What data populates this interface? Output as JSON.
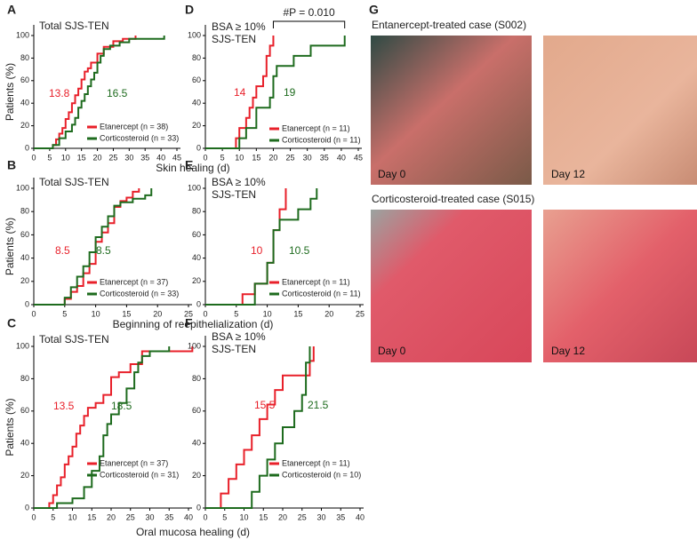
{
  "chart_data": [
    {
      "type": "step",
      "panel": "A",
      "title": "Total SJS-TEN",
      "xlabel": "Skin healing (d)",
      "ylabel": "Patients (%)",
      "xlim": [
        0,
        45
      ],
      "xticks": [
        0,
        5,
        10,
        15,
        20,
        25,
        30,
        35,
        40,
        45
      ],
      "ylim": [
        0,
        100
      ],
      "yticks": [
        0,
        20,
        40,
        60,
        80,
        100
      ],
      "legend": "lower right",
      "series": [
        {
          "name": "Etanercept (n = 38)",
          "color": "#e8202a",
          "median_label": "13.8",
          "x": [
            0,
            6,
            7,
            8,
            9,
            10,
            11,
            12,
            13,
            14,
            15,
            16,
            17,
            18,
            20,
            22,
            25,
            28,
            32
          ],
          "values": [
            0,
            3,
            8,
            13,
            18,
            26,
            32,
            40,
            47,
            53,
            61,
            68,
            71,
            76,
            84,
            90,
            95,
            97,
            100
          ]
        },
        {
          "name": "Corticosteroid (n = 33)",
          "color": "#1e6b1e",
          "median_label": "16.5",
          "x": [
            0,
            6,
            8,
            10,
            12,
            13,
            14,
            15,
            16,
            17,
            18,
            19,
            20,
            21,
            22,
            24,
            27,
            30,
            41
          ],
          "values": [
            0,
            3,
            9,
            15,
            21,
            27,
            36,
            42,
            48,
            55,
            61,
            67,
            76,
            82,
            88,
            91,
            94,
            97,
            100
          ]
        }
      ]
    },
    {
      "type": "step",
      "panel": "D",
      "title": "BSA ≥ 10%",
      "subtitle": "SJS-TEN",
      "annotation": "#P = 0.010",
      "xlim": [
        0,
        45
      ],
      "xticks": [
        0,
        5,
        10,
        15,
        20,
        25,
        30,
        35,
        40,
        45
      ],
      "ylim": [
        0,
        100
      ],
      "yticks": [
        0,
        20,
        40,
        60,
        80,
        100
      ],
      "legend": "lower right",
      "series": [
        {
          "name": "Etanercept (n = 11)",
          "color": "#e8202a",
          "median_label": "14",
          "x": [
            0,
            9,
            10,
            12,
            13,
            14,
            15,
            17,
            18,
            19,
            20
          ],
          "values": [
            0,
            9,
            18,
            27,
            36,
            45,
            55,
            64,
            82,
            91,
            100
          ]
        },
        {
          "name": "Corticosteroid (n = 11)",
          "color": "#1e6b1e",
          "median_label": "19",
          "x": [
            0,
            10,
            12,
            15,
            19,
            20,
            21,
            26,
            31,
            41
          ],
          "values": [
            0,
            9,
            18,
            36,
            45,
            64,
            73,
            82,
            91,
            100
          ]
        }
      ]
    },
    {
      "type": "step",
      "panel": "B",
      "title": "Total SJS-TEN",
      "xlabel": "Beginning of reepithelialization (d)",
      "ylabel": "Patients (%)",
      "xlim": [
        0,
        25
      ],
      "xticks": [
        0,
        5,
        10,
        15,
        20,
        25
      ],
      "ylim": [
        0,
        100
      ],
      "yticks": [
        0,
        20,
        40,
        60,
        80,
        100
      ],
      "legend": "lower right",
      "series": [
        {
          "name": "Etanercept (n = 37)",
          "color": "#e8202a",
          "median_label": "8.5",
          "x": [
            0,
            5,
            6,
            7,
            8,
            9,
            10,
            11,
            12,
            13,
            14,
            15,
            16,
            17
          ],
          "values": [
            0,
            5,
            11,
            16,
            27,
            35,
            54,
            62,
            70,
            84,
            89,
            92,
            97,
            100
          ]
        },
        {
          "name": "Corticosteroid (n = 33)",
          "color": "#1e6b1e",
          "median_label": "8.5",
          "x": [
            0,
            5,
            6,
            7,
            8,
            9,
            10,
            11,
            12,
            13,
            14,
            16,
            18,
            19
          ],
          "values": [
            0,
            6,
            15,
            24,
            33,
            45,
            58,
            67,
            76,
            85,
            88,
            91,
            94,
            100
          ]
        }
      ]
    },
    {
      "type": "step",
      "panel": "E",
      "title": "BSA ≥ 10%",
      "subtitle": "SJS-TEN",
      "xlim": [
        0,
        25
      ],
      "xticks": [
        0,
        5,
        10,
        15,
        20,
        25
      ],
      "ylim": [
        0,
        100
      ],
      "yticks": [
        0,
        20,
        40,
        60,
        80,
        100
      ],
      "legend": "lower right",
      "series": [
        {
          "name": "Etanercept (n = 11)",
          "color": "#e8202a",
          "median_label": "10",
          "x": [
            0,
            6,
            8,
            10,
            11,
            12,
            13
          ],
          "values": [
            0,
            9,
            18,
            36,
            64,
            82,
            100
          ]
        },
        {
          "name": "Corticosteroid (n = 11)",
          "color": "#1e6b1e",
          "median_label": "10.5",
          "x": [
            0,
            8,
            10,
            11,
            12,
            15,
            17,
            18
          ],
          "values": [
            0,
            18,
            36,
            64,
            73,
            82,
            91,
            100
          ]
        }
      ]
    },
    {
      "type": "step",
      "panel": "C",
      "title": "Total SJS-TEN",
      "xlabel": "Oral mucosa healing (d)",
      "ylabel": "Patients (%)",
      "xlim": [
        0,
        40
      ],
      "xticks": [
        0,
        5,
        10,
        15,
        20,
        25,
        30,
        35,
        40
      ],
      "ylim": [
        0,
        100
      ],
      "yticks": [
        0,
        20,
        40,
        60,
        80,
        100
      ],
      "legend": "lower right",
      "series": [
        {
          "name": "Etanercept (n = 37)",
          "color": "#e8202a",
          "median_label": "13.5",
          "x": [
            0,
            4,
            5,
            6,
            7,
            8,
            9,
            10,
            11,
            12,
            13,
            14,
            16,
            18,
            20,
            22,
            25,
            28,
            35,
            41
          ],
          "values": [
            0,
            3,
            8,
            14,
            19,
            27,
            32,
            38,
            46,
            51,
            57,
            62,
            65,
            70,
            81,
            84,
            89,
            97,
            97,
            100
          ]
        },
        {
          "name": "Corticosteroid (n = 31)",
          "color": "#1e6b1e",
          "median_label": "18.5",
          "x": [
            0,
            6,
            10,
            13,
            15,
            17,
            18,
            19,
            20,
            22,
            24,
            26,
            27,
            28,
            30,
            35
          ],
          "values": [
            0,
            3,
            6,
            13,
            23,
            32,
            45,
            52,
            58,
            65,
            74,
            84,
            90,
            94,
            97,
            100
          ]
        }
      ]
    },
    {
      "type": "step",
      "panel": "F",
      "title": "BSA ≥ 10%",
      "subtitle": "SJS-TEN",
      "xlim": [
        0,
        40
      ],
      "xticks": [
        0,
        5,
        10,
        15,
        20,
        25,
        30,
        35,
        40
      ],
      "ylim": [
        0,
        100
      ],
      "yticks": [
        0,
        20,
        40,
        60,
        80,
        100
      ],
      "legend": "lower right",
      "series": [
        {
          "name": "Etanercept (n = 11)",
          "color": "#e8202a",
          "median_label": "15.5",
          "x": [
            0,
            4,
            6,
            8,
            10,
            12,
            14,
            16,
            18,
            20,
            25,
            27,
            28
          ],
          "values": [
            0,
            9,
            18,
            27,
            36,
            45,
            55,
            64,
            73,
            82,
            82,
            91,
            100
          ]
        },
        {
          "name": "Corticosteroid (n = 10)",
          "color": "#1e6b1e",
          "median_label": "21.5",
          "x": [
            0,
            12,
            14,
            16,
            18,
            20,
            23,
            25,
            26,
            27
          ],
          "values": [
            0,
            10,
            20,
            30,
            40,
            50,
            60,
            70,
            90,
            100
          ]
        }
      ]
    }
  ],
  "photos_panel": {
    "panel": "G",
    "cases": [
      {
        "title": "Entanercept-treated case (S002)",
        "days": [
          "Day 0",
          "Day 12"
        ]
      },
      {
        "title": "Corticosteroid-treated case (S015)",
        "days": [
          "Day 0",
          "Day 12"
        ]
      }
    ]
  }
}
